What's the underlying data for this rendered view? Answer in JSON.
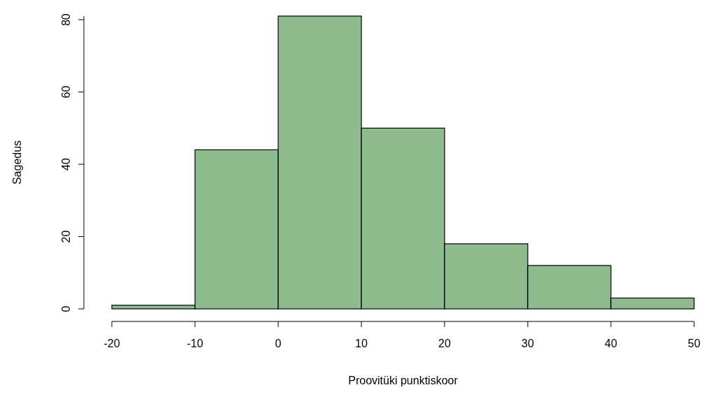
{
  "chart_data": {
    "type": "histogram",
    "xlabel": "Proovitüki punktiskoor",
    "ylabel": "Sagedus",
    "bins": [
      -20,
      -10,
      0,
      10,
      20,
      30,
      40,
      50
    ],
    "values": [
      1,
      44,
      81,
      50,
      18,
      12,
      3
    ],
    "color": "#8fbc8f",
    "xlim": [
      -20,
      50
    ],
    "xticks": [
      -20,
      -10,
      0,
      10,
      20,
      30,
      40,
      50
    ],
    "ylim": [
      0,
      81
    ],
    "yticks": [
      0,
      20,
      40,
      60,
      80
    ],
    "grid": false
  }
}
